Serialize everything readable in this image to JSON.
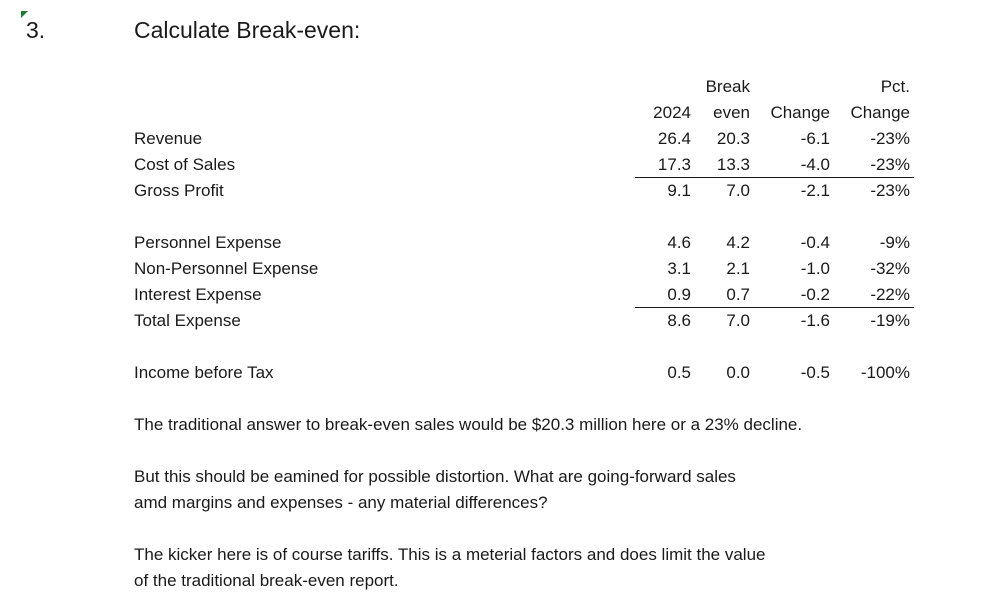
{
  "heading": {
    "number": "3.",
    "title": "Calculate Break-even:"
  },
  "table": {
    "headers": {
      "top": [
        "",
        "Break",
        "",
        "Pct."
      ],
      "bottom": [
        "2024",
        "even",
        "Change",
        "Change"
      ]
    },
    "rows": [
      {
        "label": "Revenue",
        "v2024": "26.4",
        "breakeven": "20.3",
        "change": "-6.1",
        "pct": "-23%"
      },
      {
        "label": "Cost of Sales",
        "v2024": "17.3",
        "breakeven": "13.3",
        "change": "-4.0",
        "pct": "-23%"
      },
      {
        "label": "Gross Profit",
        "v2024": "9.1",
        "breakeven": "7.0",
        "change": "-2.1",
        "pct": "-23%"
      },
      {
        "label": "Personnel Expense",
        "v2024": "4.6",
        "breakeven": "4.2",
        "change": "-0.4",
        "pct": "-9%"
      },
      {
        "label": "Non-Personnel Expense",
        "v2024": "3.1",
        "breakeven": "2.1",
        "change": "-1.0",
        "pct": "-32%"
      },
      {
        "label": "Interest Expense",
        "v2024": "0.9",
        "breakeven": "0.7",
        "change": "-0.2",
        "pct": "-22%"
      },
      {
        "label": "Total Expense",
        "v2024": "8.6",
        "breakeven": "7.0",
        "change": "-1.6",
        "pct": "-19%"
      },
      {
        "label": "Income before Tax",
        "v2024": "0.5",
        "breakeven": "0.0",
        "change": "-0.5",
        "pct": "-100%"
      }
    ]
  },
  "paragraphs": [
    [
      "The traditional answer to break-even sales would be $20.3 million here or a 23% decline."
    ],
    [
      "But this should be eamined for possible distortion. What are going-forward sales",
      "amd margins and expenses - any material differences?"
    ],
    [
      "The kicker here is of course tariffs. This is a meterial factors and does limit the value",
      "of the traditional break-even report."
    ]
  ],
  "colors": {
    "corner_marker": "#1e7b34",
    "text": "#1a1a1a"
  }
}
